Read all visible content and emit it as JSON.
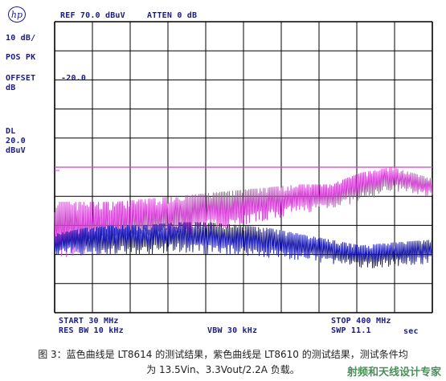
{
  "header": {
    "logo": "hp",
    "ref": "REF 70.0 dBuV",
    "atten": "ATTEN 0 dB"
  },
  "left_panel": {
    "scale": "10 dB/",
    "detector": "POS PK",
    "offset_label": "OFFSET",
    "offset_unit": "dB",
    "offset_value": "-20.0",
    "dl_label": "DL",
    "dl_value": "20.0",
    "dl_unit": "dBuV"
  },
  "footer": {
    "start": "START 30 MHz",
    "stop": "STOP 400 MHz",
    "rbw": "RES BW 10 kHz",
    "vbw": "VBW 30 kHz",
    "swp": "SWP 11.1",
    "swp_unit": "sec"
  },
  "caption": {
    "line1": "图 3：蓝色曲线是 LT8614 的测试结果，紫色曲线是 LT8610 的测试结果，测试条件均",
    "line2": "为 13.5Vin、3.3Vout/2.2A 负载。"
  },
  "watermark": "射频和天线设计专家",
  "colors": {
    "grid": "#000000",
    "display_line": "#d040d0",
    "lt8610": "#d040d0",
    "lt8614": "#1515a8",
    "text": "#1a1a8c"
  },
  "chart_data": {
    "type": "line",
    "x_unit": "MHz",
    "y_unit": "dBuV",
    "xlim": [
      30,
      400
    ],
    "ylim": [
      -30,
      70
    ],
    "grid": true,
    "display_line": 20,
    "x": [
      30,
      60,
      90,
      120,
      150,
      180,
      210,
      240,
      270,
      300,
      330,
      360,
      400
    ],
    "series": [
      {
        "name": "LT8610",
        "color": "#d040d0",
        "values": [
          8,
          8,
          8,
          9,
          10,
          11,
          12,
          13,
          14,
          14,
          18,
          20,
          16
        ],
        "min_values": [
          -12,
          -10,
          -8,
          -6,
          -4,
          -2,
          0,
          2,
          4,
          6,
          8,
          12,
          10
        ]
      },
      {
        "name": "LT8614",
        "color": "#1515a8",
        "values": [
          -3,
          -1,
          0,
          0,
          1,
          1,
          0,
          -1,
          -3,
          -5,
          -7,
          -6,
          -5
        ],
        "min_values": [
          -10,
          -10,
          -10,
          -10,
          -9,
          -10,
          -10,
          -11,
          -12,
          -13,
          -15,
          -14,
          -13
        ]
      }
    ]
  }
}
